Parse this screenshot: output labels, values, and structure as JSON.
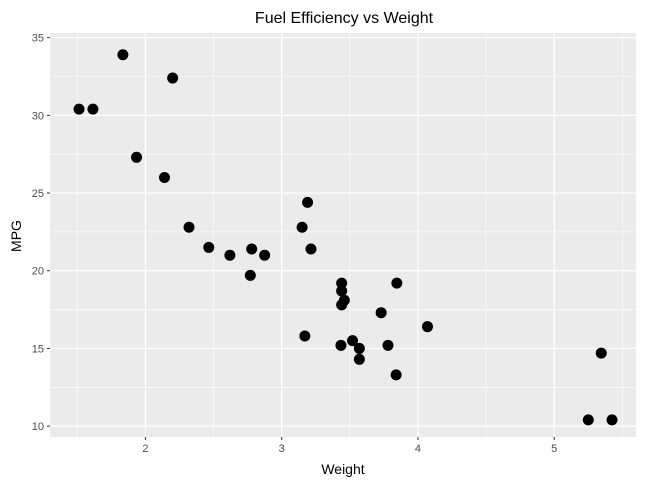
{
  "chart_data": {
    "type": "scatter",
    "title": "Fuel Efficiency vs Weight",
    "xlabel": "Weight",
    "ylabel": "MPG",
    "xlim": [
      1.3,
      5.6
    ],
    "ylim": [
      9.3,
      35.3
    ],
    "xticks": [
      2,
      3,
      4,
      5
    ],
    "yticks": [
      10,
      15,
      20,
      25,
      30,
      35
    ],
    "grid": true,
    "colors": {
      "panel": "#ebebeb",
      "grid_major": "#ffffff",
      "point": "#000000",
      "tick_text": "#4d4d4d"
    },
    "points": [
      {
        "x": 1.513,
        "y": 30.4
      },
      {
        "x": 1.615,
        "y": 30.4
      },
      {
        "x": 1.835,
        "y": 33.9
      },
      {
        "x": 1.935,
        "y": 27.3
      },
      {
        "x": 2.14,
        "y": 26.0
      },
      {
        "x": 2.2,
        "y": 32.4
      },
      {
        "x": 2.32,
        "y": 22.8
      },
      {
        "x": 2.465,
        "y": 21.5
      },
      {
        "x": 2.62,
        "y": 21.0
      },
      {
        "x": 2.77,
        "y": 19.7
      },
      {
        "x": 2.78,
        "y": 21.4
      },
      {
        "x": 2.875,
        "y": 21.0
      },
      {
        "x": 3.15,
        "y": 22.8
      },
      {
        "x": 3.17,
        "y": 15.8
      },
      {
        "x": 3.19,
        "y": 24.4
      },
      {
        "x": 3.215,
        "y": 21.4
      },
      {
        "x": 3.435,
        "y": 15.2
      },
      {
        "x": 3.44,
        "y": 19.2
      },
      {
        "x": 3.44,
        "y": 18.7
      },
      {
        "x": 3.44,
        "y": 17.8
      },
      {
        "x": 3.46,
        "y": 18.1
      },
      {
        "x": 3.52,
        "y": 15.5
      },
      {
        "x": 3.57,
        "y": 15.0
      },
      {
        "x": 3.57,
        "y": 14.3
      },
      {
        "x": 3.73,
        "y": 17.3
      },
      {
        "x": 3.78,
        "y": 15.2
      },
      {
        "x": 3.84,
        "y": 13.3
      },
      {
        "x": 3.845,
        "y": 19.2
      },
      {
        "x": 4.07,
        "y": 16.4
      },
      {
        "x": 5.25,
        "y": 10.4
      },
      {
        "x": 5.345,
        "y": 14.7
      },
      {
        "x": 5.424,
        "y": 10.4
      }
    ]
  }
}
